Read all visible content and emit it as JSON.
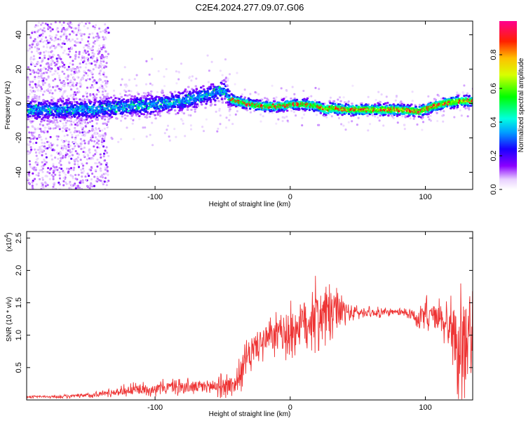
{
  "title": "C2E4.2024.277.09.07.G06",
  "chart_data": [
    {
      "type": "heatmap",
      "xlabel": "Height of straight line (km)",
      "ylabel": "Frequency (Hz)",
      "xlim": [
        -195,
        135
      ],
      "ylim": [
        -50,
        48
      ],
      "xticks": [
        -100,
        0,
        100
      ],
      "xtick_labels": [
        "-100",
        "0",
        "100"
      ],
      "yticks": [
        -40,
        -20,
        0,
        20,
        40
      ],
      "ytick_labels": [
        "-40",
        "-20",
        "0",
        "20",
        "40"
      ],
      "ridge": {
        "x": [
          -190,
          -170,
          -150,
          -135,
          -120,
          -100,
          -80,
          -60,
          -50,
          -45,
          -40,
          -30,
          -20,
          -10,
          0,
          10,
          20,
          25,
          30,
          40,
          60,
          80,
          95,
          105,
          115,
          125,
          133
        ],
        "y": [
          -3,
          -3,
          -3,
          -2,
          -1,
          0,
          2,
          6,
          9,
          3,
          2,
          0,
          -1,
          -1,
          0,
          0,
          -1,
          -3,
          -2,
          -3,
          -3,
          -3,
          -4,
          -1,
          1,
          2,
          2
        ]
      },
      "colorbar": {
        "label": "Normalized spectral amplitude",
        "range": [
          0,
          1
        ],
        "ticks": [
          "0.0",
          "0.2",
          "0.4",
          "0.6",
          "0.8"
        ],
        "tick_values": [
          0.0,
          0.2,
          0.4,
          0.6,
          0.8
        ]
      }
    },
    {
      "type": "line",
      "xlabel": "Height of straight line (km)",
      "ylabel": "SNR (10 * v/v)",
      "multiplier_label": "(x10",
      "multiplier_exp": "4",
      "multiplier_close": ")",
      "xlim": [
        -195,
        135
      ],
      "ylim": [
        0,
        2.6
      ],
      "xticks": [
        -100,
        0,
        100
      ],
      "xtick_labels": [
        "-100",
        "0",
        "100"
      ],
      "yticks": [
        0.5,
        1.0,
        1.5,
        2.0,
        2.5
      ],
      "ytick_labels": [
        "0.5",
        "1.0",
        "1.5",
        "2.0",
        "2.5"
      ],
      "color": "#ee3333",
      "envelope": {
        "x": [
          -195,
          -170,
          -150,
          -130,
          -120,
          -100,
          -90,
          -70,
          -50,
          -40,
          -35,
          -30,
          -25,
          -20,
          -10,
          0,
          10,
          20,
          30,
          40,
          50,
          60,
          70,
          80,
          90,
          95,
          100,
          105,
          110,
          115,
          120,
          125,
          130,
          135
        ],
        "mean": [
          0.05,
          0.05,
          0.07,
          0.12,
          0.15,
          0.17,
          0.2,
          0.2,
          0.22,
          0.25,
          0.5,
          0.7,
          0.85,
          0.9,
          1.0,
          1.05,
          1.2,
          1.3,
          1.35,
          1.35,
          1.35,
          1.35,
          1.35,
          1.35,
          1.35,
          1.2,
          1.3,
          1.3,
          1.25,
          1.2,
          1.1,
          0.8,
          0.9,
          1.0
        ],
        "amp": [
          0.02,
          0.03,
          0.05,
          0.08,
          0.12,
          0.12,
          0.15,
          0.15,
          0.2,
          0.25,
          0.35,
          0.4,
          0.35,
          0.35,
          0.4,
          0.5,
          0.6,
          0.65,
          0.55,
          0.3,
          0.12,
          0.1,
          0.08,
          0.08,
          0.1,
          0.25,
          0.35,
          0.3,
          0.35,
          0.4,
          0.6,
          1.0,
          1.1,
          1.0
        ]
      }
    }
  ]
}
